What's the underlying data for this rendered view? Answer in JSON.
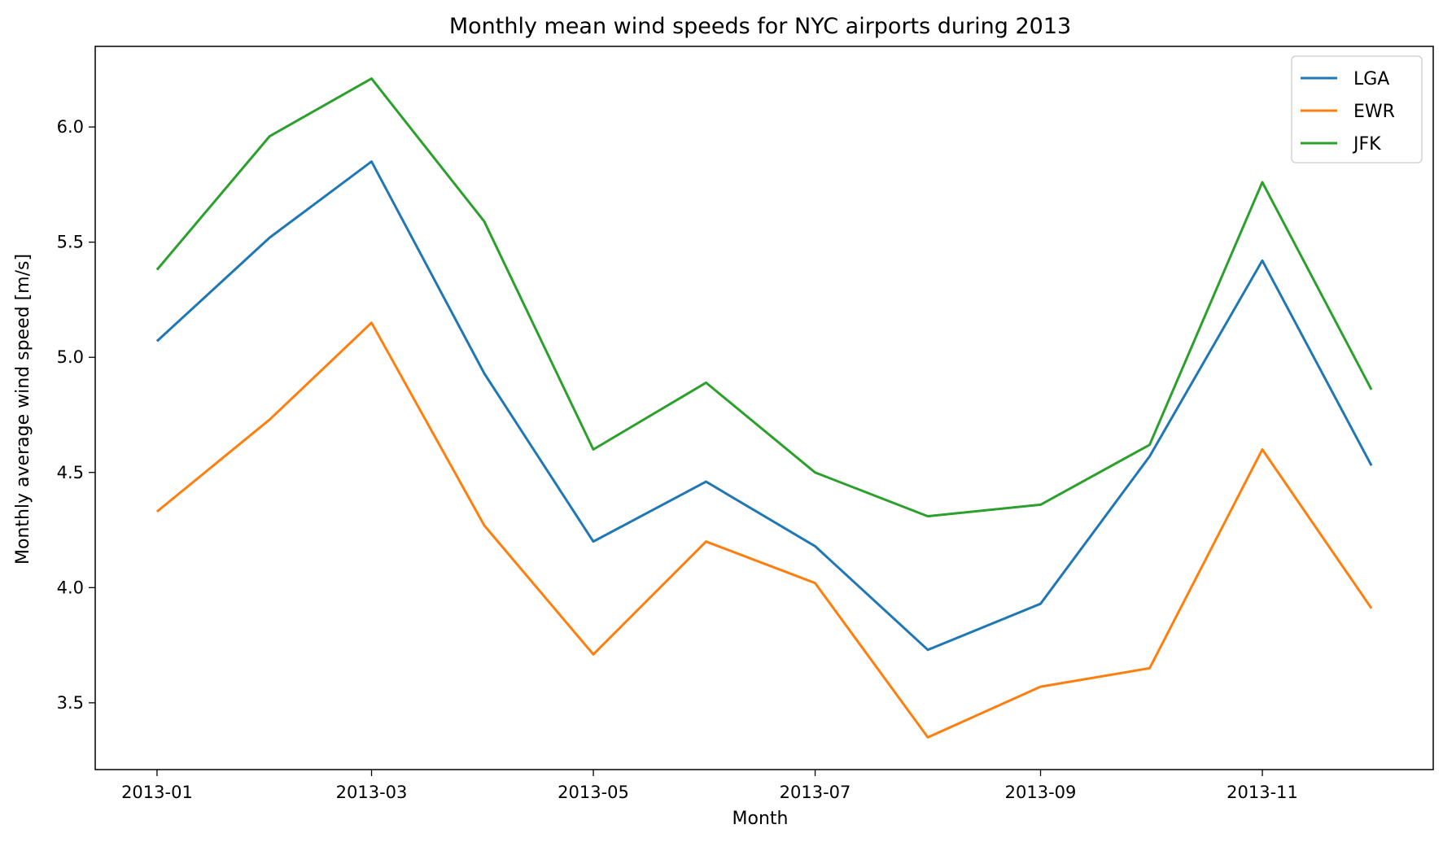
{
  "chart_data": {
    "type": "line",
    "title": "Monthly mean wind speeds for NYC airports during 2013",
    "xlabel": "Month",
    "ylabel": "Monthly average wind speed [m/s]",
    "x": [
      "2013-01",
      "2013-02",
      "2013-03",
      "2013-04",
      "2013-05",
      "2013-06",
      "2013-07",
      "2013-08",
      "2013-09",
      "2013-10",
      "2013-11",
      "2013-12"
    ],
    "x_tick_labels": [
      "2013-01",
      "2013-03",
      "2013-05",
      "2013-07",
      "2013-09",
      "2013-11"
    ],
    "y_ticks": [
      3.5,
      4.0,
      4.5,
      5.0,
      5.5,
      6.0
    ],
    "y_tick_labels": [
      "3.5",
      "4.0",
      "4.5",
      "5.0",
      "5.5",
      "6.0"
    ],
    "ylim": [
      3.21,
      6.35
    ],
    "xlim": [
      "2012-12-15",
      "2013-12-18"
    ],
    "grid": false,
    "legend_position": "top-right",
    "series": [
      {
        "name": "LGA",
        "color": "#1f77b4",
        "values": [
          5.07,
          5.52,
          5.85,
          4.93,
          4.2,
          4.46,
          4.18,
          3.73,
          3.93,
          4.57,
          5.42,
          4.53
        ]
      },
      {
        "name": "EWR",
        "color": "#ff7f0e",
        "values": [
          4.33,
          4.73,
          5.15,
          4.27,
          3.71,
          4.2,
          4.02,
          3.35,
          3.57,
          3.65,
          4.6,
          3.91
        ]
      },
      {
        "name": "JFK",
        "color": "#2ca02c",
        "values": [
          5.38,
          5.96,
          6.21,
          5.59,
          4.6,
          4.89,
          4.5,
          4.31,
          4.36,
          4.62,
          5.76,
          4.86
        ]
      }
    ]
  }
}
